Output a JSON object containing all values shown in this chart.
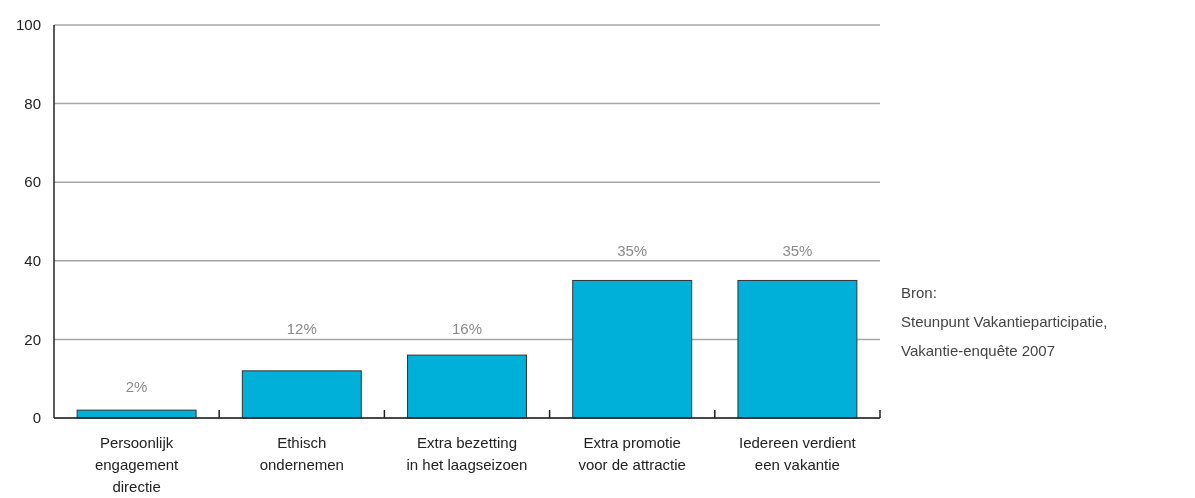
{
  "chart_data": {
    "type": "bar",
    "categories": [
      "Persoonlijk\nengagement\ndirectie",
      "Ethisch\nondernemen",
      "Extra bezetting\nin het laagseizoen",
      "Extra promotie\nvoor de attractie",
      "Iedereen verdient\neen vakantie"
    ],
    "values": [
      2,
      12,
      16,
      35,
      35
    ],
    "value_labels": [
      "2%",
      "12%",
      "16%",
      "35%",
      "35%"
    ],
    "color": "#00b0d8",
    "ylim": [
      0,
      100
    ],
    "yticks": [
      0,
      20,
      40,
      60,
      80,
      100
    ],
    "grid": "y",
    "annotations": [
      "Bron:\nSteunpunt Vakantieparticipatie,\nVakantie-enquête 2007"
    ]
  }
}
